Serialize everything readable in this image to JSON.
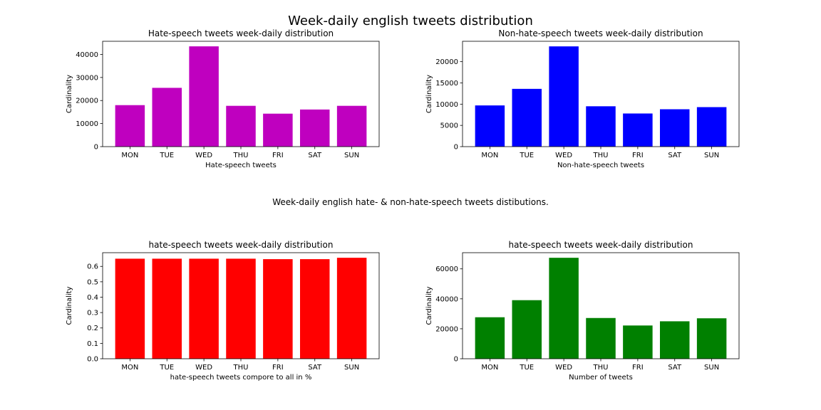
{
  "figure": {
    "suptitle": "Week-daily english tweets distribution",
    "midtext": "Week-daily english hate- & non-hate-speech tweets distibutions."
  },
  "chart_data": [
    {
      "type": "bar",
      "title": "Hate-speech tweets week-daily distribution",
      "xlabel": "Hate-speech tweets",
      "ylabel": "Cardinality",
      "categories": [
        "MON",
        "TUE",
        "WED",
        "THU",
        "FRI",
        "SAT",
        "SUN"
      ],
      "values": [
        18000,
        25500,
        43500,
        17700,
        14300,
        16100,
        17700
      ],
      "ylim": [
        0,
        45700
      ],
      "yticks": [
        0,
        10000,
        20000,
        30000,
        40000
      ],
      "ytick_labels": [
        "0",
        "10000",
        "20000",
        "30000",
        "40000"
      ],
      "color": "#bf00bf",
      "grid": false
    },
    {
      "type": "bar",
      "title": "Non-hate-speech tweets week-daily distribution",
      "xlabel": "Non-hate-speech tweets",
      "ylabel": "Cardinality",
      "categories": [
        "MON",
        "TUE",
        "WED",
        "THU",
        "FRI",
        "SAT",
        "SUN"
      ],
      "values": [
        9700,
        13600,
        23600,
        9500,
        7800,
        8800,
        9300
      ],
      "ylim": [
        0,
        24800
      ],
      "yticks": [
        0,
        5000,
        10000,
        15000,
        20000
      ],
      "ytick_labels": [
        "0",
        "5000",
        "10000",
        "15000",
        "20000"
      ],
      "color": "#0000ff",
      "grid": false
    },
    {
      "type": "bar",
      "title": "hate-speech tweets week-daily distribution",
      "xlabel": "hate-speech tweets compore to all in %",
      "ylabel": "Cardinality",
      "categories": [
        "MON",
        "TUE",
        "WED",
        "THU",
        "FRI",
        "SAT",
        "SUN"
      ],
      "values": [
        0.65,
        0.65,
        0.65,
        0.65,
        0.647,
        0.647,
        0.656
      ],
      "ylim": [
        0,
        0.689
      ],
      "yticks": [
        0.0,
        0.1,
        0.2,
        0.3,
        0.4,
        0.5,
        0.6
      ],
      "ytick_labels": [
        "0.0",
        "0.1",
        "0.2",
        "0.3",
        "0.4",
        "0.5",
        "0.6"
      ],
      "color": "#ff0000",
      "grid": false
    },
    {
      "type": "bar",
      "title": "hate-speech tweets week-daily distribution",
      "xlabel": "Number of tweets",
      "ylabel": "Cardinality",
      "categories": [
        "MON",
        "TUE",
        "WED",
        "THU",
        "FRI",
        "SAT",
        "SUN"
      ],
      "values": [
        27700,
        39100,
        67400,
        27200,
        22200,
        25000,
        27000
      ],
      "ylim": [
        0,
        70800
      ],
      "yticks": [
        0,
        20000,
        40000,
        60000
      ],
      "ytick_labels": [
        "0",
        "20000",
        "40000",
        "60000"
      ],
      "color": "#008000",
      "grid": false
    }
  ]
}
